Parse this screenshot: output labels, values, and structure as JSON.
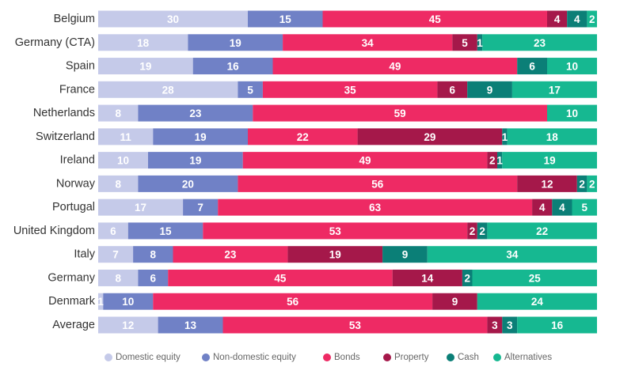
{
  "chart_data": {
    "type": "bar",
    "orientation": "horizontal",
    "stacked": true,
    "normalized": true,
    "title": "",
    "xlabel": "",
    "ylabel": "",
    "xlim": [
      0,
      100
    ],
    "grid": false,
    "legend_position": "bottom",
    "categories": [
      "Belgium",
      "Germany (CTA)",
      "Spain",
      "France",
      "Netherlands",
      "Switzerland",
      "Ireland",
      "Norway",
      "Portugal",
      "United Kingdom",
      "Italy",
      "Germany",
      "Denmark",
      "Average"
    ],
    "series": [
      {
        "name": "Domestic equity",
        "color": "#c5cae9",
        "values": [
          30,
          18,
          19,
          28,
          8,
          11,
          10,
          8,
          17,
          6,
          7,
          8,
          1,
          12
        ]
      },
      {
        "name": "Non-domestic equity",
        "color": "#7081c6",
        "values": [
          15,
          19,
          16,
          5,
          23,
          19,
          19,
          20,
          7,
          15,
          8,
          6,
          10,
          13
        ]
      },
      {
        "name": "Bonds",
        "color": "#ee2a64",
        "values": [
          45,
          34,
          49,
          35,
          59,
          22,
          49,
          56,
          63,
          53,
          23,
          45,
          56,
          53
        ]
      },
      {
        "name": "Property",
        "color": "#a5184a",
        "values": [
          4,
          5,
          0,
          6,
          0,
          29,
          2,
          12,
          4,
          2,
          19,
          14,
          9,
          3
        ]
      },
      {
        "name": "Cash",
        "color": "#0b7f77",
        "values": [
          4,
          1,
          6,
          9,
          0,
          1,
          1,
          2,
          4,
          2,
          9,
          2,
          0,
          3
        ]
      },
      {
        "name": "Alternatives",
        "color": "#16b891",
        "values": [
          2,
          23,
          10,
          17,
          10,
          18,
          19,
          2,
          5,
          22,
          34,
          25,
          24,
          16
        ]
      }
    ]
  }
}
